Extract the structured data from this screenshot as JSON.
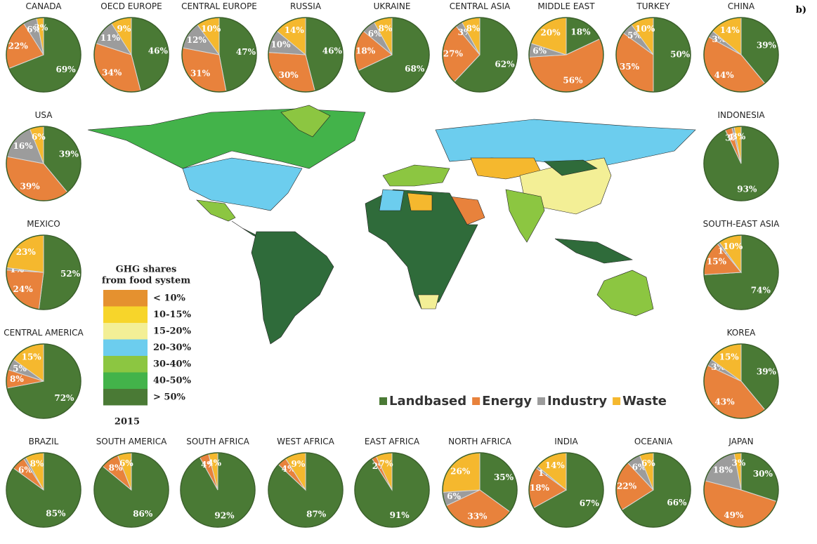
{
  "panel_label": "b)",
  "legend": {
    "categories": [
      "Landbased",
      "Energy",
      "Industry",
      "Waste"
    ],
    "colors": [
      "#4a7a35",
      "#e8823c",
      "#9c9c9c",
      "#f5b82e"
    ]
  },
  "map_legend": {
    "title": "GHG shares",
    "subtitle": "from food system",
    "year": "2015",
    "items": [
      {
        "label": "< 10%",
        "color": "#e5912f"
      },
      {
        "label": "10-15%",
        "color": "#f7d52a"
      },
      {
        "label": "15-20%",
        "color": "#f3ef96"
      },
      {
        "label": "20-30%",
        "color": "#6ccdee"
      },
      {
        "label": "30-40%",
        "color": "#8cc641"
      },
      {
        "label": "40-50%",
        "color": "#43b34a"
      },
      {
        "label": "> 50%",
        "color": "#4a7a35"
      }
    ]
  },
  "chart_data": [
    {
      "type": "pie",
      "title": "CANADA",
      "values": [
        69,
        22,
        6,
        3
      ],
      "value_labels": [
        "69%",
        "22%",
        "6%",
        "3%"
      ]
    },
    {
      "type": "pie",
      "title": "OECD EUROPE",
      "values": [
        46,
        34,
        11,
        9
      ],
      "value_labels": [
        "46%",
        "34%",
        "11%",
        "9%"
      ]
    },
    {
      "type": "pie",
      "title": "CENTRAL EUROPE",
      "values": [
        47,
        31,
        12,
        10
      ],
      "value_labels": [
        "47%",
        "31%",
        "12%",
        "10%"
      ]
    },
    {
      "type": "pie",
      "title": "RUSSIA",
      "values": [
        46,
        30,
        10,
        14
      ],
      "value_labels": [
        "46%",
        "30%",
        "10%",
        "14%"
      ]
    },
    {
      "type": "pie",
      "title": "UKRAINE",
      "values": [
        68,
        18,
        6,
        8
      ],
      "value_labels": [
        "68%",
        "18%",
        "6%",
        "8%"
      ]
    },
    {
      "type": "pie",
      "title": "CENTRAL ASIA",
      "values": [
        62,
        27,
        3,
        8
      ],
      "value_labels": [
        "62%",
        "27%",
        "3%",
        "8%"
      ]
    },
    {
      "type": "pie",
      "title": "MIDDLE EAST",
      "values": [
        18,
        56,
        6,
        20
      ],
      "value_labels": [
        "18%",
        "56%",
        "6%",
        "20%"
      ]
    },
    {
      "type": "pie",
      "title": "TURKEY",
      "values": [
        50,
        35,
        5,
        10
      ],
      "value_labels": [
        "50%",
        "35%",
        "5%",
        "10%"
      ]
    },
    {
      "type": "pie",
      "title": "CHINA",
      "values": [
        39,
        44,
        3,
        14
      ],
      "value_labels": [
        "39%",
        "44%",
        "3%",
        "14%"
      ]
    },
    {
      "type": "pie",
      "title": "USA",
      "values": [
        39,
        39,
        16,
        6
      ],
      "value_labels": [
        "39%",
        "39%",
        "16%",
        "6%"
      ]
    },
    {
      "type": "pie",
      "title": "MEXICO",
      "values": [
        52,
        24,
        1,
        23
      ],
      "value_labels": [
        "52%",
        "24%",
        "1%",
        "23%"
      ]
    },
    {
      "type": "pie",
      "title": "CENTRAL AMERICA",
      "values": [
        72,
        8,
        5,
        15
      ],
      "value_labels": [
        "72%",
        "8%",
        "5%",
        "15%"
      ]
    },
    {
      "type": "pie",
      "title": "INDONESIA",
      "values": [
        93,
        3,
        1,
        3
      ],
      "value_labels": [
        "93%",
        "3%",
        "1%",
        "3%"
      ]
    },
    {
      "type": "pie",
      "title": "SOUTH-EAST ASIA",
      "values": [
        74,
        15,
        1,
        10
      ],
      "value_labels": [
        "74%",
        "15%",
        "1%",
        "10%"
      ]
    },
    {
      "type": "pie",
      "title": "KOREA",
      "values": [
        39,
        43,
        3,
        15
      ],
      "value_labels": [
        "39%",
        "43%",
        "3%",
        "15%"
      ]
    },
    {
      "type": "pie",
      "title": "BRAZIL",
      "values": [
        85,
        6,
        1,
        8
      ],
      "value_labels": [
        "85%",
        "6%",
        null,
        "8%"
      ]
    },
    {
      "type": "pie",
      "title": "SOUTH AMERICA",
      "values": [
        86,
        8,
        0,
        6
      ],
      "value_labels": [
        "86%",
        "8%",
        null,
        "6%"
      ]
    },
    {
      "type": "pie",
      "title": "SOUTH AFRICA",
      "values": [
        92,
        4,
        0,
        4
      ],
      "value_labels": [
        "92%",
        "4%",
        null,
        "4%"
      ]
    },
    {
      "type": "pie",
      "title": "WEST AFRICA",
      "values": [
        87,
        4,
        0,
        9
      ],
      "value_labels": [
        "87%",
        "4%",
        null,
        "9%"
      ]
    },
    {
      "type": "pie",
      "title": "EAST AFRICA",
      "values": [
        91,
        2,
        0,
        7
      ],
      "value_labels": [
        "91%",
        "2%",
        null,
        "7%"
      ]
    },
    {
      "type": "pie",
      "title": "NORTH AFRICA",
      "values": [
        35,
        33,
        6,
        26
      ],
      "value_labels": [
        "35%",
        "33%",
        "6%",
        "26%"
      ]
    },
    {
      "type": "pie",
      "title": "INDIA",
      "values": [
        67,
        18,
        1,
        14
      ],
      "value_labels": [
        "67%",
        "18%",
        "1%",
        "14%"
      ]
    },
    {
      "type": "pie",
      "title": "OCEANIA",
      "values": [
        66,
        22,
        6,
        6
      ],
      "value_labels": [
        "66%",
        "22%",
        "6%",
        "6%"
      ]
    },
    {
      "type": "pie",
      "title": "JAPAN",
      "values": [
        30,
        49,
        18,
        3
      ],
      "value_labels": [
        "30%",
        "49%",
        "18%",
        "3%"
      ]
    }
  ]
}
